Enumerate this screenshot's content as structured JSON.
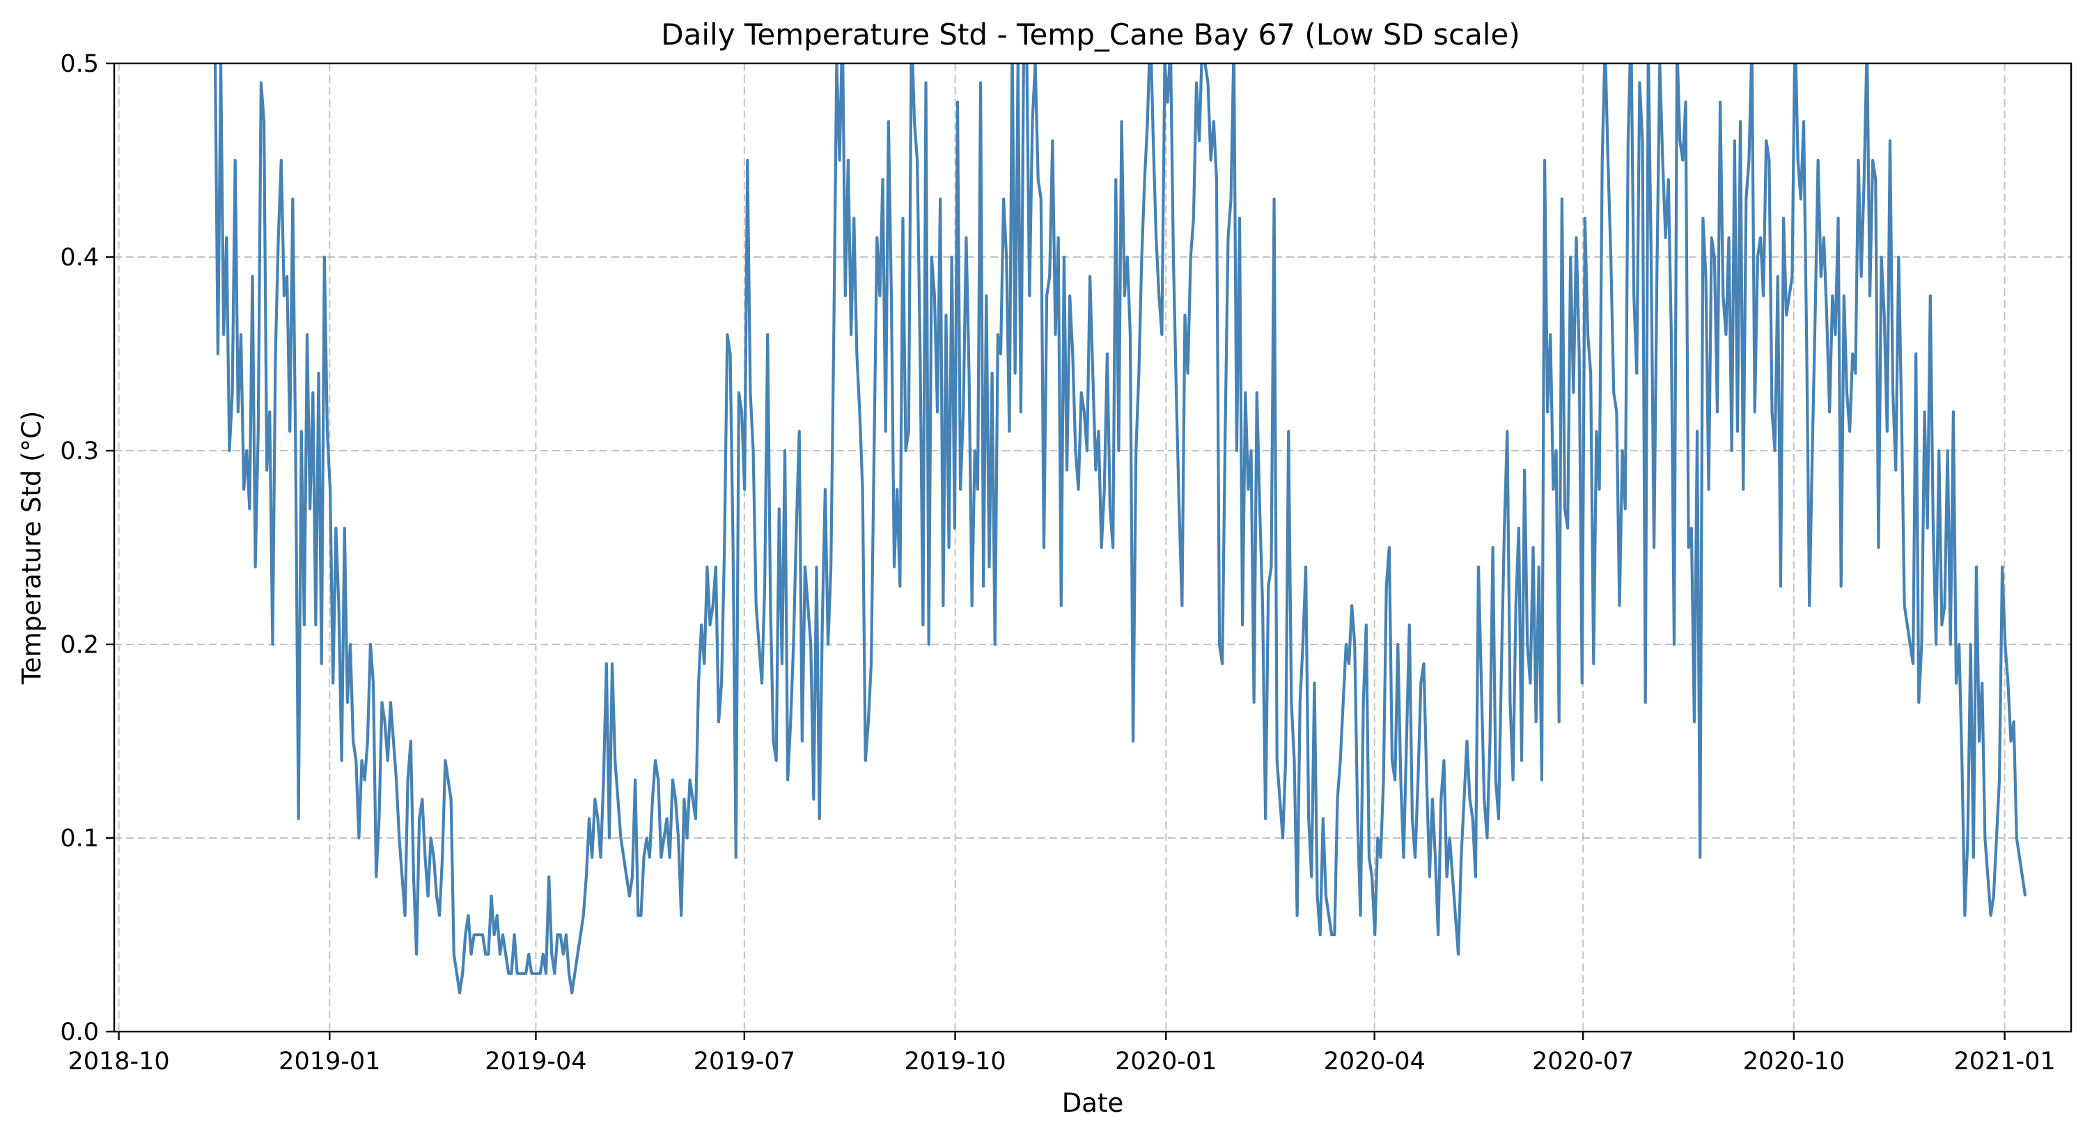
{
  "chart_data": {
    "type": "line",
    "title": "Daily Temperature Std - Temp_Cane Bay 67 (Low SD scale)",
    "xlabel": "Date",
    "ylabel": "Temperature Std (°C)",
    "ylim": [
      0,
      0.5
    ],
    "xlim": [
      "2018-09-29",
      "2021-01-30"
    ],
    "grid": true,
    "line_color": "#4682b4",
    "x_ticks": [
      "2018-10",
      "2019-01",
      "2019-04",
      "2019-07",
      "2019-10",
      "2020-01",
      "2020-04",
      "2020-07",
      "2020-10",
      "2021-01"
    ],
    "y_ticks": [
      "0.0",
      "0.1",
      "0.2",
      "0.3",
      "0.4",
      "0.5"
    ],
    "series": [
      {
        "x_start": "2018-11-12",
        "x_end": "2021-01-10",
        "frequency": "daily",
        "values": [
          0.51,
          0.35,
          0.5,
          0.36,
          0.41,
          0.3,
          0.33,
          0.45,
          0.32,
          0.36,
          0.28,
          0.3,
          0.27,
          0.39,
          0.24,
          0.31,
          0.49,
          0.47,
          0.29,
          0.32,
          0.2,
          0.35,
          0.41,
          0.45,
          0.38,
          0.39,
          0.31,
          0.43,
          0.3,
          0.11,
          0.31,
          0.21,
          0.36,
          0.27,
          0.33,
          0.21,
          0.34,
          0.19,
          0.4,
          0.31,
          0.28,
          0.18,
          0.26,
          0.22,
          0.14,
          0.26,
          0.17,
          0.2,
          0.15,
          0.14,
          0.1,
          0.14,
          0.13,
          0.15,
          0.2,
          0.18,
          0.08,
          0.11,
          0.17,
          0.16,
          0.14,
          0.17,
          0.15,
          0.13,
          0.1,
          0.08,
          0.06,
          0.13,
          0.15,
          0.08,
          0.04,
          0.11,
          0.12,
          0.09,
          0.07,
          0.1,
          0.09,
          0.07,
          0.06,
          0.09,
          0.14,
          0.13,
          0.12,
          0.04,
          0.03,
          0.02,
          0.03,
          0.05,
          0.06,
          0.04,
          0.05,
          0.05,
          0.05,
          0.05,
          0.04,
          0.04,
          0.07,
          0.05,
          0.06,
          0.04,
          0.05,
          0.04,
          0.03,
          0.03,
          0.05,
          0.03,
          0.03,
          0.03,
          0.03,
          0.04,
          0.03,
          0.03,
          0.03,
          0.03,
          0.04,
          0.03,
          0.08,
          0.04,
          0.03,
          0.05,
          0.05,
          0.04,
          0.05,
          0.03,
          0.02,
          0.03,
          0.04,
          0.05,
          0.06,
          0.08,
          0.11,
          0.09,
          0.12,
          0.11,
          0.09,
          0.13,
          0.19,
          0.1,
          0.19,
          0.14,
          0.12,
          0.1,
          0.09,
          0.08,
          0.07,
          0.08,
          0.13,
          0.06,
          0.06,
          0.09,
          0.1,
          0.09,
          0.12,
          0.14,
          0.13,
          0.09,
          0.1,
          0.11,
          0.09,
          0.13,
          0.12,
          0.1,
          0.06,
          0.12,
          0.1,
          0.13,
          0.12,
          0.11,
          0.18,
          0.21,
          0.19,
          0.24,
          0.21,
          0.22,
          0.24,
          0.16,
          0.18,
          0.25,
          0.36,
          0.35,
          0.25,
          0.09,
          0.33,
          0.32,
          0.28,
          0.45,
          0.33,
          0.3,
          0.22,
          0.2,
          0.18,
          0.23,
          0.36,
          0.22,
          0.15,
          0.14,
          0.27,
          0.19,
          0.3,
          0.13,
          0.16,
          0.2,
          0.26,
          0.31,
          0.15,
          0.24,
          0.22,
          0.2,
          0.12,
          0.24,
          0.11,
          0.21,
          0.28,
          0.2,
          0.24,
          0.36,
          0.5,
          0.45,
          0.52,
          0.38,
          0.45,
          0.36,
          0.42,
          0.35,
          0.32,
          0.28,
          0.14,
          0.16,
          0.19,
          0.3,
          0.41,
          0.38,
          0.44,
          0.31,
          0.47,
          0.38,
          0.24,
          0.28,
          0.23,
          0.42,
          0.3,
          0.31,
          0.52,
          0.47,
          0.45,
          0.35,
          0.21,
          0.49,
          0.2,
          0.4,
          0.38,
          0.32,
          0.43,
          0.22,
          0.37,
          0.25,
          0.4,
          0.26,
          0.48,
          0.28,
          0.32,
          0.41,
          0.34,
          0.22,
          0.3,
          0.28,
          0.49,
          0.23,
          0.38,
          0.24,
          0.34,
          0.2,
          0.36,
          0.35,
          0.43,
          0.4,
          0.31,
          0.51,
          0.34,
          0.5,
          0.32,
          0.51,
          0.51,
          0.38,
          0.47,
          0.5,
          0.44,
          0.43,
          0.25,
          0.38,
          0.39,
          0.46,
          0.36,
          0.41,
          0.22,
          0.4,
          0.29,
          0.38,
          0.35,
          0.3,
          0.28,
          0.33,
          0.32,
          0.3,
          0.39,
          0.34,
          0.29,
          0.31,
          0.25,
          0.28,
          0.35,
          0.27,
          0.25,
          0.44,
          0.3,
          0.47,
          0.38,
          0.4,
          0.36,
          0.15,
          0.3,
          0.34,
          0.4,
          0.44,
          0.47,
          0.52,
          0.46,
          0.41,
          0.38,
          0.36,
          0.5,
          0.48,
          0.51,
          0.4,
          0.33,
          0.27,
          0.22,
          0.37,
          0.34,
          0.4,
          0.42,
          0.49,
          0.46,
          0.51,
          0.5,
          0.49,
          0.45,
          0.47,
          0.44,
          0.2,
          0.19,
          0.31,
          0.41,
          0.43,
          0.51,
          0.3,
          0.42,
          0.21,
          0.33,
          0.28,
          0.3,
          0.17,
          0.33,
          0.27,
          0.22,
          0.11,
          0.23,
          0.24,
          0.43,
          0.14,
          0.12,
          0.1,
          0.14,
          0.31,
          0.17,
          0.14,
          0.06,
          0.17,
          0.2,
          0.24,
          0.11,
          0.08,
          0.18,
          0.07,
          0.05,
          0.11,
          0.07,
          0.06,
          0.05,
          0.05,
          0.12,
          0.14,
          0.17,
          0.2,
          0.19,
          0.22,
          0.2,
          0.11,
          0.06,
          0.17,
          0.21,
          0.09,
          0.08,
          0.05,
          0.1,
          0.09,
          0.13,
          0.23,
          0.25,
          0.14,
          0.13,
          0.2,
          0.13,
          0.09,
          0.15,
          0.21,
          0.11,
          0.09,
          0.13,
          0.18,
          0.19,
          0.13,
          0.08,
          0.12,
          0.09,
          0.05,
          0.12,
          0.14,
          0.08,
          0.1,
          0.08,
          0.06,
          0.04,
          0.09,
          0.12,
          0.15,
          0.12,
          0.11,
          0.08,
          0.24,
          0.18,
          0.12,
          0.1,
          0.15,
          0.25,
          0.13,
          0.11,
          0.19,
          0.26,
          0.31,
          0.17,
          0.13,
          0.22,
          0.26,
          0.14,
          0.29,
          0.2,
          0.18,
          0.25,
          0.16,
          0.24,
          0.13,
          0.45,
          0.32,
          0.36,
          0.28,
          0.3,
          0.16,
          0.43,
          0.27,
          0.26,
          0.4,
          0.33,
          0.41,
          0.35,
          0.18,
          0.42,
          0.36,
          0.34,
          0.19,
          0.31,
          0.28,
          0.45,
          0.51,
          0.45,
          0.4,
          0.33,
          0.32,
          0.22,
          0.3,
          0.27,
          0.46,
          0.52,
          0.38,
          0.34,
          0.49,
          0.46,
          0.17,
          0.51,
          0.4,
          0.25,
          0.39,
          0.5,
          0.45,
          0.41,
          0.44,
          0.36,
          0.2,
          0.51,
          0.46,
          0.45,
          0.48,
          0.25,
          0.26,
          0.16,
          0.31,
          0.09,
          0.42,
          0.39,
          0.28,
          0.41,
          0.4,
          0.32,
          0.48,
          0.38,
          0.36,
          0.41,
          0.3,
          0.46,
          0.31,
          0.47,
          0.28,
          0.43,
          0.45,
          0.51,
          0.32,
          0.4,
          0.41,
          0.38,
          0.46,
          0.45,
          0.32,
          0.3,
          0.39,
          0.23,
          0.42,
          0.37,
          0.38,
          0.39,
          0.52,
          0.45,
          0.43,
          0.47,
          0.36,
          0.22,
          0.3,
          0.37,
          0.45,
          0.39,
          0.41,
          0.37,
          0.32,
          0.38,
          0.36,
          0.42,
          0.23,
          0.38,
          0.33,
          0.31,
          0.35,
          0.34,
          0.45,
          0.39,
          0.44,
          0.51,
          0.38,
          0.45,
          0.44,
          0.25,
          0.4,
          0.37,
          0.31,
          0.46,
          0.33,
          0.29,
          0.4,
          0.32,
          0.22,
          0.21,
          0.2,
          0.19,
          0.35,
          0.17,
          0.2,
          0.32,
          0.26,
          0.38,
          0.26,
          0.2,
          0.3,
          0.21,
          0.22,
          0.3,
          0.2,
          0.32,
          0.18,
          0.2,
          0.14,
          0.06,
          0.1,
          0.2,
          0.09,
          0.24,
          0.15,
          0.18,
          0.1,
          0.08,
          0.06,
          0.07,
          0.1,
          0.13,
          0.24,
          0.2,
          0.18,
          0.15,
          0.16,
          0.1,
          0.09,
          0.08,
          0.07
        ]
      }
    ]
  }
}
